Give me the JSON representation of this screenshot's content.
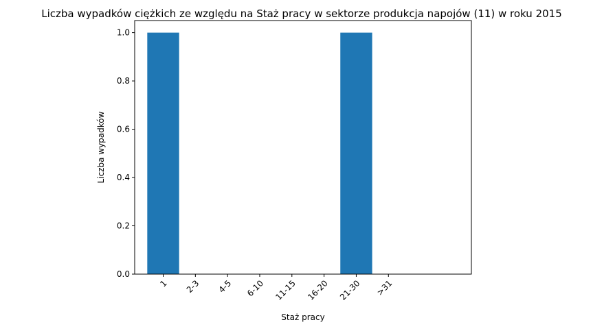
{
  "chart_data": {
    "type": "bar",
    "title": "Liczba wypadków ciężkich ze względu na Staż pracy w sektorze produkcja napojów  (11)   w roku 2015",
    "xlabel": "Staż pracy",
    "ylabel": "Liczba wypadków",
    "categories": [
      "1",
      "2-3",
      "4-5",
      "6-10",
      "11-15",
      "16-20",
      "21-30",
      ">31"
    ],
    "values": [
      1,
      0,
      0,
      0,
      0,
      0,
      1,
      0
    ],
    "ylim": [
      0,
      1.05
    ],
    "yticks": [
      "0.0",
      "0.2",
      "0.4",
      "0.6",
      "0.8",
      "1.0"
    ],
    "bar_color": "#1f77b4",
    "grid": false
  }
}
